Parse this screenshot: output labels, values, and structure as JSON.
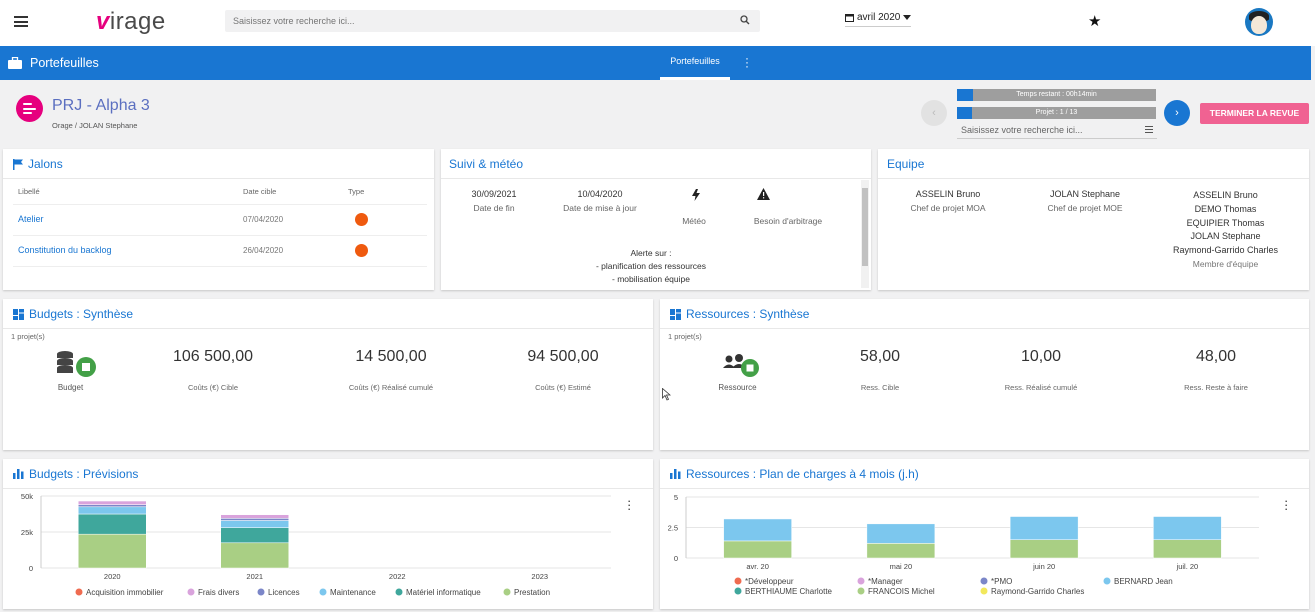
{
  "app": {
    "logo_v": "v",
    "logo_rest": "irage",
    "search_placeholder": "Saisissez votre recherche ici...",
    "date_label": "avril 2020"
  },
  "bluebar": {
    "title": "Portefeuilles",
    "tab": "Portefeuilles"
  },
  "project": {
    "title": "PRJ - Alpha 3",
    "subtitle": "Orage / JOLAN Stephane",
    "time_left": "Temps restant : 00h14min",
    "time_fraction": 0.08,
    "project_counter": "Projet : 1 / 13",
    "project_fraction": 0.077,
    "search_placeholder": "Saisissez votre recherche ici...",
    "finish_button": "TERMINER LA REVUE",
    "prev_symbol": "‹",
    "next_symbol": "›"
  },
  "jalons": {
    "title": "Jalons",
    "col_libelle": "Libellé",
    "col_date": "Date cible",
    "col_type": "Type",
    "rows": [
      {
        "label": "Atelier",
        "date": "07/04/2020"
      },
      {
        "label": "Constitution du backlog",
        "date": "26/04/2020"
      }
    ]
  },
  "suivi": {
    "title": "Suivi & météo",
    "date_fin": "30/09/2021",
    "date_fin_label": "Date de fin",
    "date_maj": "10/04/2020",
    "date_maj_label": "Date de mise à jour",
    "meteo_label": "Météo",
    "arbitrage_label": "Besoin d'arbitrage",
    "alert_title": "Alerte sur :",
    "alert_1": "- planification des ressources",
    "alert_2": "- mobilisation équipe"
  },
  "equipe": {
    "title": "Equipe",
    "moa_name": "ASSELIN Bruno",
    "moa_role": "Chef de projet MOA",
    "moe_name": "JOLAN Stephane",
    "moe_role": "Chef de projet MOE",
    "members": [
      "ASSELIN Bruno",
      "DEMO Thomas",
      "EQUIPIER Thomas",
      "JOLAN Stephane",
      "Raymond-Garrido Charles"
    ],
    "members_role": "Membre d'équipe"
  },
  "budgets_synthese": {
    "title": "Budgets : Synthèse",
    "count": "1 projet(s)",
    "icon_label": "Budget",
    "values": [
      {
        "value": "106 500,00",
        "label": "Coûts (€) Cible"
      },
      {
        "value": "14 500,00",
        "label": "Coûts (€) Réalisé cumulé"
      },
      {
        "value": "94 500,00",
        "label": "Coûts (€) Estimé"
      }
    ]
  },
  "ressources_synthese": {
    "title": "Ressources : Synthèse",
    "count": "1 projet(s)",
    "icon_label": "Ressource",
    "values": [
      {
        "value": "58,00",
        "label": "Ress. Cible"
      },
      {
        "value": "10,00",
        "label": "Ress. Réalisé cumulé"
      },
      {
        "value": "48,00",
        "label": "Ress. Reste à faire"
      }
    ]
  },
  "budgets_prev": {
    "title": "Budgets : Prévisions"
  },
  "ressources_plan": {
    "title": "Ressources : Plan de charges à 4 mois (j.h)"
  },
  "colors": {
    "brand_blue": "#1976d2",
    "magenta": "#e6007e",
    "pink_button": "#f06292",
    "orange_dot": "#ef5a0f"
  },
  "chart_data": [
    {
      "type": "bar",
      "stacked": true,
      "categories": [
        "2020",
        "2021",
        "2022",
        "2023"
      ],
      "yticks": [
        "0",
        "25k",
        "50k"
      ],
      "ylim": [
        0,
        50000
      ],
      "series": [
        {
          "name": "Prestation",
          "color": "#a9cf84",
          "values": [
            23500,
            17500,
            0,
            0
          ]
        },
        {
          "name": "Matériel informatique",
          "color": "#3fa79c",
          "values": [
            14000,
            10500,
            0,
            0
          ]
        },
        {
          "name": "Maintenance",
          "color": "#7cc7ee",
          "values": [
            5000,
            5000,
            0,
            0
          ]
        },
        {
          "name": "Licences",
          "color": "#7b86c8",
          "values": [
            1500,
            1500,
            0,
            0
          ]
        },
        {
          "name": "Frais divers",
          "color": "#d9a3dc",
          "values": [
            2500,
            2500,
            0,
            0
          ]
        },
        {
          "name": "Acquisition immobilier",
          "color": "#ef6b50",
          "values": [
            0,
            0,
            0,
            0
          ]
        }
      ]
    },
    {
      "type": "bar",
      "stacked": true,
      "categories": [
        "avr. 20",
        "mai 20",
        "juin 20",
        "juil. 20"
      ],
      "yticks": [
        "0",
        "2.5",
        "5"
      ],
      "ylim": [
        0,
        5
      ],
      "series": [
        {
          "name": "FRANCOIS Michel",
          "color": "#a9cf84",
          "values": [
            1.4,
            1.2,
            1.5,
            1.5
          ]
        },
        {
          "name": "BERNARD Jean",
          "color": "#7cc7ee",
          "values": [
            1.8,
            1.6,
            1.9,
            1.9
          ]
        },
        {
          "name": "*Développeur",
          "color": "#ef6b50",
          "values": [
            0,
            0,
            0,
            0
          ]
        },
        {
          "name": "*Manager",
          "color": "#d9a3dc",
          "values": [
            0,
            0,
            0,
            0
          ]
        },
        {
          "name": "*PMO",
          "color": "#7b86c8",
          "values": [
            0,
            0,
            0,
            0
          ]
        },
        {
          "name": "BERTHIAUME Charlotte",
          "color": "#3fa79c",
          "values": [
            0,
            0,
            0,
            0
          ]
        },
        {
          "name": "Raymond-Garrido Charles",
          "color": "#f2e85c",
          "values": [
            0,
            0,
            0,
            0
          ]
        }
      ]
    }
  ]
}
